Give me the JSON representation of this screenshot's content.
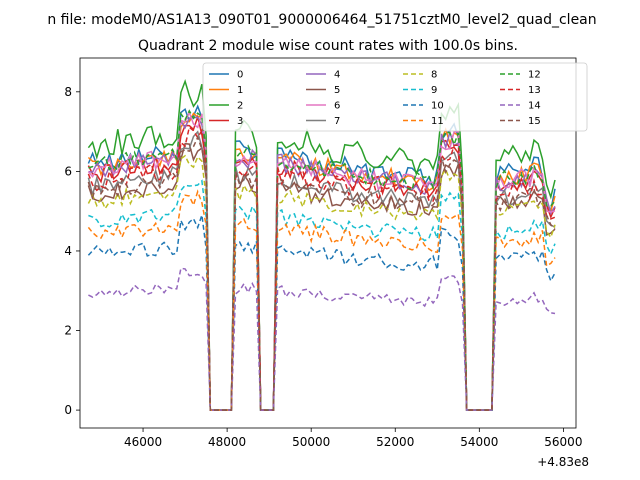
{
  "chart_data": {
    "type": "line",
    "suptitle": "n file: modeM0/AS1A13_090T01_9000006464_51751cztM0_level2_quad_clean",
    "title": "Quadrant 2 module wise count rates with 100.0s bins.",
    "xlabel": "",
    "ylabel": "",
    "x_offset_label": "+4.83e8",
    "xlim": [
      44500,
      56300
    ],
    "ylim": [
      -0.45,
      8.85
    ],
    "xticks": [
      46000,
      48000,
      50000,
      52000,
      54000,
      56000
    ],
    "xtick_labels": [
      "46000",
      "48000",
      "50000",
      "52000",
      "54000",
      "56000"
    ],
    "yticks": [
      0,
      2,
      4,
      6,
      8
    ],
    "ytick_labels": [
      "0",
      "2",
      "4",
      "6",
      "8"
    ],
    "grid": false,
    "legend_position": "top",
    "legend_columns": 4,
    "gaps": [
      {
        "start": 47600,
        "end": 48100
      },
      {
        "start": 48800,
        "end": 49100
      },
      {
        "start": 53650,
        "end": 54350
      }
    ],
    "x_start": 44700,
    "x_end": 55800,
    "bin": 100,
    "series": [
      {
        "name": "0",
        "color": "#1f77b4",
        "dash": false,
        "level": 6.2,
        "amp": 0.3
      },
      {
        "name": "1",
        "color": "#ff7f0e",
        "dash": false,
        "level": 6.1,
        "amp": 0.25
      },
      {
        "name": "2",
        "color": "#2ca02c",
        "dash": false,
        "level": 6.6,
        "amp": 0.35
      },
      {
        "name": "3",
        "color": "#d62728",
        "dash": false,
        "level": 5.9,
        "amp": 0.25
      },
      {
        "name": "4",
        "color": "#9467bd",
        "dash": false,
        "level": 6.0,
        "amp": 0.25
      },
      {
        "name": "5",
        "color": "#8c564b",
        "dash": false,
        "level": 5.4,
        "amp": 0.25
      },
      {
        "name": "6",
        "color": "#e377c2",
        "dash": false,
        "level": 6.0,
        "amp": 0.25
      },
      {
        "name": "7",
        "color": "#7f7f7f",
        "dash": false,
        "level": 5.6,
        "amp": 0.25
      },
      {
        "name": "8",
        "color": "#bcbd22",
        "dash": true,
        "level": 5.2,
        "amp": 0.2
      },
      {
        "name": "9",
        "color": "#17becf",
        "dash": true,
        "level": 4.7,
        "amp": 0.2
      },
      {
        "name": "10",
        "color": "#1f77b4",
        "dash": true,
        "level": 3.9,
        "amp": 0.2
      },
      {
        "name": "11",
        "color": "#ff7f0e",
        "dash": true,
        "level": 4.4,
        "amp": 0.2
      },
      {
        "name": "12",
        "color": "#2ca02c",
        "dash": true,
        "level": 6.1,
        "amp": 0.25
      },
      {
        "name": "13",
        "color": "#d62728",
        "dash": true,
        "level": 5.7,
        "amp": 0.25
      },
      {
        "name": "14",
        "color": "#9467bd",
        "dash": true,
        "level": 2.9,
        "amp": 0.15
      },
      {
        "name": "15",
        "color": "#8c564b",
        "dash": true,
        "level": 5.5,
        "amp": 0.25
      }
    ]
  }
}
